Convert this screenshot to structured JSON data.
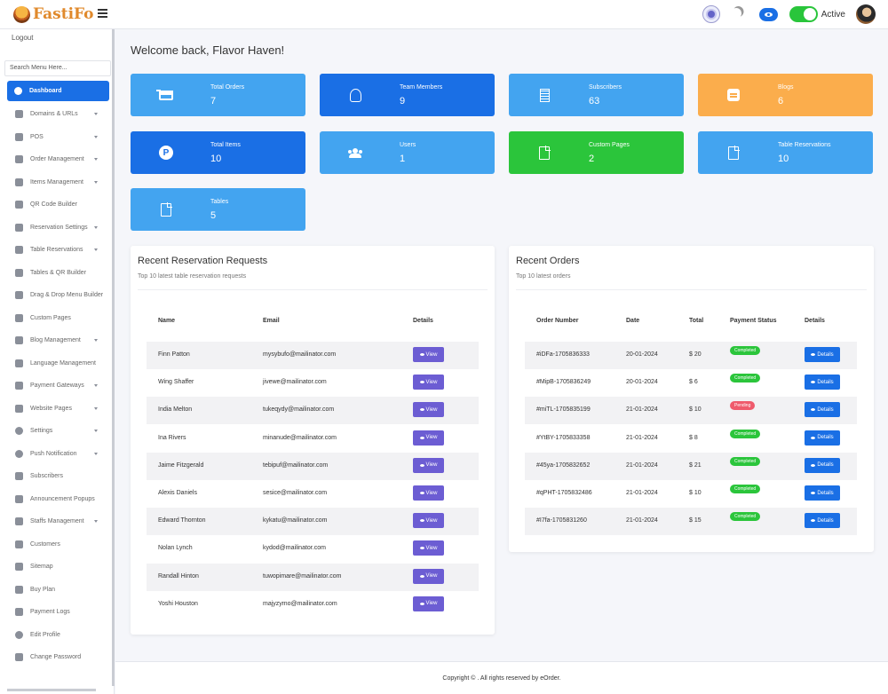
{
  "brand": {
    "name": "FastiFo"
  },
  "topbar": {
    "status_label": "Active"
  },
  "sidebar": {
    "logout": "Logout",
    "search_placeholder": "Search Menu Here...",
    "items": [
      {
        "label": "Dashboard",
        "icon": "palette-icon",
        "caret": false,
        "active": true
      },
      {
        "label": "Domains & URLs",
        "icon": "link-icon",
        "caret": true
      },
      {
        "label": "POS",
        "icon": "cart-icon",
        "caret": true
      },
      {
        "label": "Order Management",
        "icon": "box-icon",
        "caret": true
      },
      {
        "label": "Items Management",
        "icon": "list-icon",
        "caret": true
      },
      {
        "label": "QR Code Builder",
        "icon": "qr-code-icon",
        "caret": false
      },
      {
        "label": "Reservation Settings",
        "icon": "backward-icon",
        "caret": true
      },
      {
        "label": "Table Reservations",
        "icon": "utensils-icon",
        "caret": true
      },
      {
        "label": "Tables & QR Builder",
        "icon": "table-icon",
        "caret": false
      },
      {
        "label": "Drag & Drop Menu Builder",
        "icon": "bars-icon",
        "caret": false
      },
      {
        "label": "Custom Pages",
        "icon": "file-icon",
        "caret": false
      },
      {
        "label": "Blog Management",
        "icon": "blog-icon",
        "caret": true
      },
      {
        "label": "Language Management",
        "icon": "language-icon",
        "caret": false
      },
      {
        "label": "Payment Gateways",
        "icon": "wallet-icon",
        "caret": true
      },
      {
        "label": "Website Pages",
        "icon": "monitor-icon",
        "caret": true
      },
      {
        "label": "Settings",
        "icon": "gear-icon",
        "caret": true
      },
      {
        "label": "Push Notification",
        "icon": "bell-icon",
        "caret": true
      },
      {
        "label": "Subscribers",
        "icon": "subscribers-icon",
        "caret": false
      },
      {
        "label": "Announcement Popups",
        "icon": "megaphone-icon",
        "caret": false
      },
      {
        "label": "Staffs Management",
        "icon": "staff-icon",
        "caret": true
      },
      {
        "label": "Customers",
        "icon": "customers-icon",
        "caret": false
      },
      {
        "label": "Sitemap",
        "icon": "sitemap-icon",
        "caret": false
      },
      {
        "label": "Buy Plan",
        "icon": "document-icon",
        "caret": false
      },
      {
        "label": "Payment Logs",
        "icon": "log-list-icon",
        "caret": false
      },
      {
        "label": "Edit Profile",
        "icon": "user-circle-icon",
        "caret": false
      },
      {
        "label": "Change Password",
        "icon": "key-icon",
        "caret": false
      }
    ]
  },
  "welcome": "Welcome back, Flavor Haven!",
  "stats": [
    {
      "label": "Total Orders",
      "value": "7",
      "icon": "cart-icon"
    },
    {
      "label": "Team Members",
      "value": "9",
      "icon": "team-icon"
    },
    {
      "label": "Subscribers",
      "value": "63",
      "icon": "building-icon"
    },
    {
      "label": "Blogs",
      "value": "6",
      "icon": "blog-icon"
    },
    {
      "label": "Total Items",
      "value": "10",
      "icon": "product-hunt-icon"
    },
    {
      "label": "Users",
      "value": "1",
      "icon": "users-icon"
    },
    {
      "label": "Custom Pages",
      "value": "2",
      "icon": "file-icon"
    },
    {
      "label": "Table Reservations",
      "value": "10",
      "icon": "file-icon"
    },
    {
      "label": "Tables",
      "value": "5",
      "icon": "file-icon"
    }
  ],
  "reservations": {
    "title": "Recent Reservation Requests",
    "subtitle": "Top 10 latest table reservation requests",
    "columns": [
      "Name",
      "Email",
      "Details"
    ],
    "button_label": "View",
    "rows": [
      {
        "name": "Finn Patton",
        "email": "mysybufo@mailinator.com"
      },
      {
        "name": "Wing Shaffer",
        "email": "jivewe@mailinator.com"
      },
      {
        "name": "India Melton",
        "email": "tukeqydy@mailinator.com"
      },
      {
        "name": "Ina Rivers",
        "email": "minanude@mailinator.com"
      },
      {
        "name": "Jaime Fitzgerald",
        "email": "tebipuf@mailinator.com"
      },
      {
        "name": "Alexis Daniels",
        "email": "sesice@mailinator.com"
      },
      {
        "name": "Edward Thornton",
        "email": "kykatu@mailinator.com"
      },
      {
        "name": "Nolan Lynch",
        "email": "kydod@mailinator.com"
      },
      {
        "name": "Randall Hinton",
        "email": "tuwopimare@mailinator.com"
      },
      {
        "name": "Yoshi Houston",
        "email": "majyzymo@mailinator.com"
      }
    ]
  },
  "orders": {
    "title": "Recent Orders",
    "subtitle": "Top 10 latest orders",
    "columns": [
      "Order Number",
      "Date",
      "Total",
      "Payment Status",
      "Details"
    ],
    "button_label": "Details",
    "rows": [
      {
        "number": "#iDFa-1705836333",
        "date": "20-01-2024",
        "total": "$ 20",
        "status": "Completed"
      },
      {
        "number": "#MipB-1705836249",
        "date": "20-01-2024",
        "total": "$ 6",
        "status": "Completed"
      },
      {
        "number": "#miTL-1705835199",
        "date": "21-01-2024",
        "total": "$ 10",
        "status": "Pending"
      },
      {
        "number": "#YtBY-1705833358",
        "date": "21-01-2024",
        "total": "$ 8",
        "status": "Completed"
      },
      {
        "number": "#45ya-1705832652",
        "date": "21-01-2024",
        "total": "$ 21",
        "status": "Completed"
      },
      {
        "number": "#qPHT-1705832486",
        "date": "21-01-2024",
        "total": "$ 10",
        "status": "Completed"
      },
      {
        "number": "#I7fa-1705831260",
        "date": "21-01-2024",
        "total": "$ 15",
        "status": "Completed"
      }
    ]
  },
  "footer": {
    "text": "Copyright © . All rights reserved by eOrder."
  },
  "colors": {
    "primary": "#1a6fe5",
    "light_blue": "#43a4f0",
    "orange": "#fbad4c",
    "green": "#2bc53b",
    "purple": "#6c5dd3",
    "danger": "#ef5b6c"
  }
}
